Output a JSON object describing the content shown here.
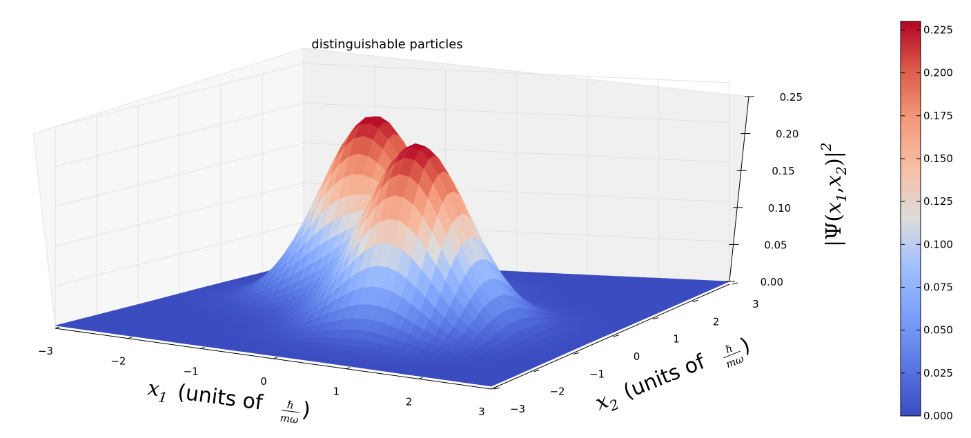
{
  "chart_data": {
    "type": "surface3d",
    "title": "distinguishable particles",
    "xlabel": {
      "symbol": "x",
      "subscript": "1",
      "text": "(units of",
      "frac_num": "ℏ",
      "frac_den": "mω",
      "close": ")"
    },
    "ylabel": {
      "symbol": "x",
      "subscript": "2",
      "text": "(units of",
      "frac_num": "ℏ",
      "frac_den": "mω",
      "close": ")"
    },
    "zlabel": {
      "prefix": "|Ψ(",
      "x1": "x",
      "sub1": "1",
      "comma": ",",
      "x2": "x",
      "sub2": "2",
      "suffix": ")|",
      "power": "2"
    },
    "xlim": [
      -3,
      3
    ],
    "ylim": [
      -3,
      3
    ],
    "zlim": [
      0,
      0.25
    ],
    "x_ticks": [
      "−3",
      "−2",
      "−1",
      "0",
      "1",
      "2",
      "3"
    ],
    "y_ticks": [
      "−3",
      "−2",
      "−1",
      "0",
      "1",
      "2",
      "3"
    ],
    "z_ticks": [
      "0.00",
      "0.05",
      "0.10",
      "0.15",
      "0.20",
      "0.25"
    ],
    "colormap": "coolwarm",
    "peaks": [
      {
        "x1": -0.7,
        "x2": 0.7,
        "value": 0.23
      },
      {
        "x1": 0.7,
        "x2": -0.7,
        "value": 0.23
      }
    ],
    "colorbar": {
      "min": 0.0,
      "max": 0.23,
      "ticks": [
        "0.000",
        "0.025",
        "0.050",
        "0.075",
        "0.100",
        "0.125",
        "0.150",
        "0.175",
        "0.200",
        "0.225"
      ]
    },
    "grid": true
  }
}
